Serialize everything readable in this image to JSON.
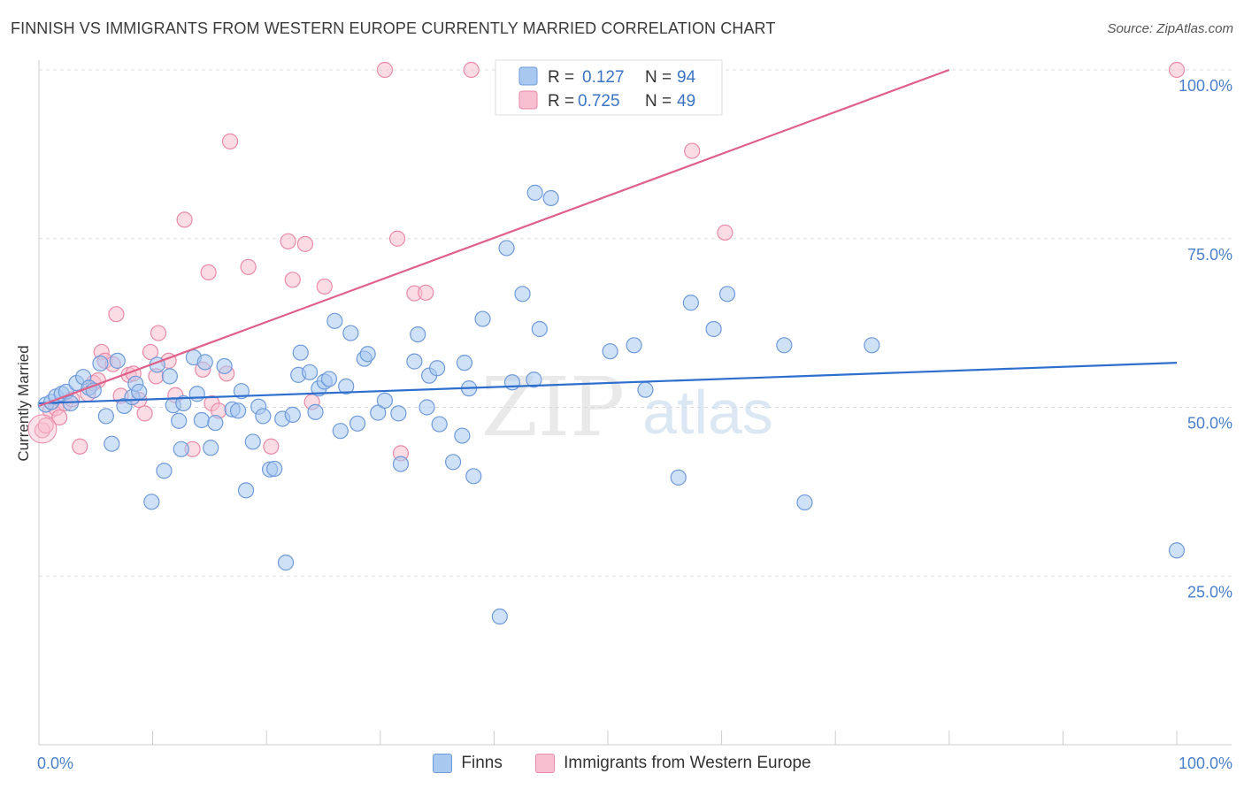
{
  "title": "FINNISH VS IMMIGRANTS FROM WESTERN EUROPE CURRENTLY MARRIED CORRELATION CHART",
  "source": "Source: ZipAtlas.com",
  "watermark": {
    "zip": "ZIP",
    "atlas": "atlas"
  },
  "colors": {
    "blue_fill": "#a8c8f0",
    "blue_stroke": "#6f9ad8",
    "blue_line": "#2e6fce",
    "pink_fill": "#f8bfd0",
    "pink_stroke": "#e98aa8",
    "pink_line": "#e0608a",
    "grid": "#dddddd",
    "axis_text": "#4a7fc9"
  },
  "legend_box": {
    "rows": [
      {
        "series": "finns",
        "r_label": "R =",
        "r_value": "0.127",
        "n_label": "N =",
        "n_value": "94"
      },
      {
        "series": "immigrants",
        "r_label": "R =",
        "r_value": "0.725",
        "n_label": "N =",
        "n_value": "49"
      }
    ]
  },
  "bottom_legend": [
    {
      "series": "finns",
      "label": "Finns"
    },
    {
      "series": "immigrants",
      "label": "Immigrants from Western Europe"
    }
  ],
  "chart_data": {
    "type": "scatter",
    "title": "FINNISH VS IMMIGRANTS FROM WESTERN EUROPE CURRENTLY MARRIED CORRELATION CHART",
    "xlabel": "",
    "ylabel": "Currently Married",
    "xlim": [
      0,
      100
    ],
    "ylim": [
      0,
      100
    ],
    "x_tick_labels": [
      "0.0%",
      "100.0%"
    ],
    "y_ticks": [
      25,
      50,
      75,
      100
    ],
    "y_tick_labels": [
      "25.0%",
      "50.0%",
      "75.0%",
      "100.0%"
    ],
    "grid": true,
    "legend_position": "top-center",
    "series": [
      {
        "name": "Finns",
        "key": "finns",
        "R": 0.127,
        "N": 94,
        "trend": [
          [
            0,
            50.6
          ],
          [
            100,
            56.6
          ]
        ],
        "points": [
          [
            0.6,
            50.4
          ],
          [
            1.1,
            50.8
          ],
          [
            1.5,
            51.6
          ],
          [
            2.0,
            52.0
          ],
          [
            2.4,
            52.3
          ],
          [
            2.8,
            50.6
          ],
          [
            3.3,
            53.6
          ],
          [
            3.9,
            54.5
          ],
          [
            4.4,
            52.9
          ],
          [
            4.8,
            52.5
          ],
          [
            5.4,
            56.5
          ],
          [
            5.9,
            48.7
          ],
          [
            6.4,
            44.6
          ],
          [
            6.9,
            56.9
          ],
          [
            7.5,
            50.2
          ],
          [
            8.2,
            51.5
          ],
          [
            8.5,
            53.5
          ],
          [
            8.8,
            52.3
          ],
          [
            9.9,
            36.0
          ],
          [
            10.4,
            56.3
          ],
          [
            11.0,
            40.6
          ],
          [
            11.5,
            54.6
          ],
          [
            11.8,
            50.3
          ],
          [
            12.3,
            48.0
          ],
          [
            12.5,
            43.8
          ],
          [
            12.7,
            50.6
          ],
          [
            13.6,
            57.4
          ],
          [
            13.9,
            52.0
          ],
          [
            14.3,
            48.1
          ],
          [
            14.6,
            56.7
          ],
          [
            15.1,
            44.0
          ],
          [
            15.5,
            47.7
          ],
          [
            16.3,
            56.1
          ],
          [
            17.0,
            49.7
          ],
          [
            17.5,
            49.5
          ],
          [
            17.8,
            52.4
          ],
          [
            18.2,
            37.7
          ],
          [
            18.8,
            44.9
          ],
          [
            19.3,
            50.1
          ],
          [
            19.7,
            48.7
          ],
          [
            20.3,
            40.8
          ],
          [
            20.7,
            40.9
          ],
          [
            21.4,
            48.3
          ],
          [
            21.7,
            27.0
          ],
          [
            22.3,
            48.9
          ],
          [
            22.8,
            54.8
          ],
          [
            23.0,
            58.1
          ],
          [
            23.8,
            55.2
          ],
          [
            24.3,
            49.3
          ],
          [
            24.6,
            52.8
          ],
          [
            25.1,
            53.8
          ],
          [
            25.5,
            54.2
          ],
          [
            26.0,
            62.8
          ],
          [
            26.5,
            46.5
          ],
          [
            27.0,
            53.1
          ],
          [
            27.4,
            61.0
          ],
          [
            28.0,
            47.6
          ],
          [
            28.6,
            57.2
          ],
          [
            28.9,
            57.9
          ],
          [
            29.8,
            49.2
          ],
          [
            30.4,
            51.0
          ],
          [
            31.6,
            49.1
          ],
          [
            31.8,
            41.6
          ],
          [
            33.0,
            56.8
          ],
          [
            33.3,
            60.8
          ],
          [
            34.1,
            50.0
          ],
          [
            34.3,
            54.7
          ],
          [
            35.0,
            55.8
          ],
          [
            35.2,
            47.5
          ],
          [
            36.4,
            41.9
          ],
          [
            37.2,
            45.8
          ],
          [
            37.4,
            56.6
          ],
          [
            37.8,
            52.8
          ],
          [
            38.2,
            39.8
          ],
          [
            39.0,
            63.1
          ],
          [
            40.5,
            19.0
          ],
          [
            41.1,
            73.6
          ],
          [
            41.6,
            53.7
          ],
          [
            42.5,
            66.8
          ],
          [
            43.5,
            54.1
          ],
          [
            43.6,
            81.8
          ],
          [
            44.0,
            61.6
          ],
          [
            45.0,
            81.0
          ],
          [
            50.2,
            58.3
          ],
          [
            52.3,
            59.2
          ],
          [
            53.3,
            52.6
          ],
          [
            56.2,
            39.6
          ],
          [
            57.3,
            65.5
          ],
          [
            59.3,
            61.6
          ],
          [
            60.5,
            66.8
          ],
          [
            65.5,
            59.2
          ],
          [
            67.3,
            35.9
          ],
          [
            73.2,
            59.2
          ],
          [
            100.0,
            28.8
          ]
        ]
      },
      {
        "name": "Immigrants from Western Europe",
        "key": "immigrants",
        "R": 0.725,
        "N": 49,
        "trend": [
          [
            0,
            50.2
          ],
          [
            80,
            100
          ]
        ],
        "points": [
          [
            0.3,
            46.6
          ],
          [
            0.6,
            47.3
          ],
          [
            1.0,
            49.5
          ],
          [
            1.5,
            49.9
          ],
          [
            1.8,
            48.5
          ],
          [
            2.3,
            50.6
          ],
          [
            2.9,
            51.2
          ],
          [
            3.6,
            44.2
          ],
          [
            4.3,
            52.0
          ],
          [
            4.8,
            53.6
          ],
          [
            5.2,
            54.0
          ],
          [
            5.5,
            58.2
          ],
          [
            5.8,
            56.9
          ],
          [
            6.5,
            56.4
          ],
          [
            6.8,
            63.8
          ],
          [
            7.2,
            51.7
          ],
          [
            7.9,
            54.8
          ],
          [
            8.3,
            55.0
          ],
          [
            8.8,
            51.1
          ],
          [
            9.3,
            49.1
          ],
          [
            9.8,
            58.2
          ],
          [
            10.3,
            54.6
          ],
          [
            10.5,
            61.0
          ],
          [
            11.4,
            56.9
          ],
          [
            12.0,
            51.8
          ],
          [
            12.8,
            77.8
          ],
          [
            13.5,
            43.8
          ],
          [
            14.4,
            55.6
          ],
          [
            14.9,
            70.0
          ],
          [
            15.2,
            50.6
          ],
          [
            15.8,
            49.5
          ],
          [
            16.5,
            55.0
          ],
          [
            16.8,
            89.4
          ],
          [
            18.4,
            70.8
          ],
          [
            20.4,
            44.2
          ],
          [
            21.9,
            74.6
          ],
          [
            22.3,
            68.9
          ],
          [
            23.4,
            74.2
          ],
          [
            24.0,
            50.8
          ],
          [
            25.1,
            67.9
          ],
          [
            30.4,
            100
          ],
          [
            31.5,
            75.0
          ],
          [
            31.8,
            43.2
          ],
          [
            33.0,
            66.9
          ],
          [
            34.0,
            67.0
          ],
          [
            38.0,
            100
          ],
          [
            57.4,
            88.0
          ],
          [
            60.3,
            75.9
          ],
          [
            100.0,
            100
          ]
        ]
      }
    ]
  }
}
